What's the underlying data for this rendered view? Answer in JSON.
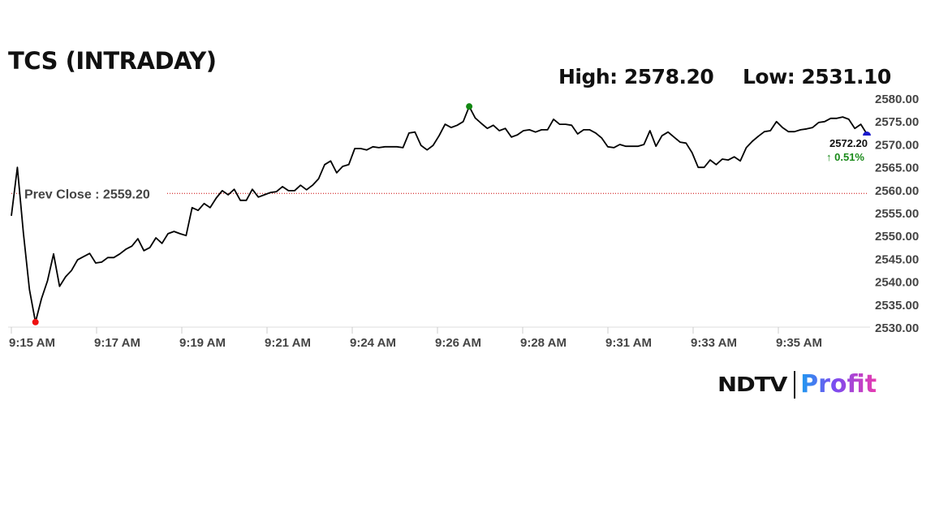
{
  "title": "TCS (INTRADAY)",
  "high_label": "High: 2578.20",
  "low_label": "Low: 2531.10",
  "logo": {
    "left": "NDTV",
    "right": "Profit"
  },
  "chart_data": {
    "type": "line",
    "title": "TCS (INTRADAY)",
    "ylim": [
      2530,
      2580
    ],
    "y_ticks": [
      "2580.00",
      "2575.00",
      "2570.00",
      "2565.00",
      "2560.00",
      "2555.00",
      "2550.00",
      "2545.00",
      "2540.00",
      "2535.00",
      "2530.00"
    ],
    "x_ticks": [
      "9:15 AM",
      "9:17 AM",
      "9:19 AM",
      "9:21 AM",
      "9:24 AM",
      "9:26 AM",
      "9:28 AM",
      "9:31 AM",
      "9:33 AM",
      "9:35 AM"
    ],
    "grid": false,
    "prev_close": {
      "value": 2559.2,
      "label": "Prev Close : 2559.20",
      "color": "#cc0000"
    },
    "last": {
      "value": "2572.20",
      "change": "↑ 0.51%",
      "change_color": "#1a8a1a",
      "marker_color": "#1a1acc"
    },
    "high": {
      "value": 2578.2,
      "marker_color": "#118811"
    },
    "low": {
      "value": 2531.1,
      "marker_color": "#ee1111"
    },
    "line_color": "#000000",
    "values": [
      2554.3,
      2564.9,
      2550.6,
      2538.2,
      2531.1,
      2536.2,
      2540.1,
      2546.0,
      2538.9,
      2541.0,
      2542.4,
      2544.7,
      2545.4,
      2546.1,
      2544.0,
      2544.2,
      2545.2,
      2545.2,
      2546.0,
      2547.0,
      2547.7,
      2549.3,
      2546.7,
      2547.4,
      2549.5,
      2548.3,
      2550.4,
      2550.9,
      2550.4,
      2550.0,
      2556.1,
      2555.5,
      2557.0,
      2556.1,
      2558.2,
      2559.8,
      2558.9,
      2560.1,
      2557.7,
      2557.7,
      2560.1,
      2558.4,
      2558.9,
      2559.4,
      2559.6,
      2560.7,
      2559.8,
      2559.8,
      2561.0,
      2560.0,
      2561.0,
      2562.4,
      2565.5,
      2566.3,
      2563.7,
      2565.1,
      2565.5,
      2569.0,
      2569.0,
      2568.7,
      2569.4,
      2569.2,
      2569.4,
      2569.4,
      2569.4,
      2569.2,
      2572.4,
      2572.6,
      2569.7,
      2568.7,
      2569.7,
      2571.8,
      2574.3,
      2573.6,
      2574.1,
      2574.9,
      2578.2,
      2575.7,
      2574.5,
      2573.4,
      2574.1,
      2572.9,
      2573.4,
      2571.5,
      2572.0,
      2572.9,
      2573.1,
      2572.6,
      2573.1,
      2573.1,
      2575.4,
      2574.3,
      2574.3,
      2574.1,
      2572.2,
      2573.1,
      2573.1,
      2572.4,
      2571.3,
      2569.4,
      2569.2,
      2569.9,
      2569.5,
      2569.5,
      2569.5,
      2569.9,
      2572.9,
      2569.5,
      2571.8,
      2572.6,
      2571.5,
      2570.4,
      2570.2,
      2568.1,
      2564.9,
      2564.9,
      2566.5,
      2565.5,
      2566.7,
      2566.5,
      2567.2,
      2566.3,
      2569.2,
      2570.6,
      2571.7,
      2572.7,
      2572.9,
      2574.9,
      2573.6,
      2572.7,
      2572.7,
      2573.1,
      2573.3,
      2573.6,
      2574.7,
      2574.9,
      2575.6,
      2575.6,
      2575.9,
      2575.4,
      2573.4,
      2574.3,
      2572.2
    ]
  }
}
